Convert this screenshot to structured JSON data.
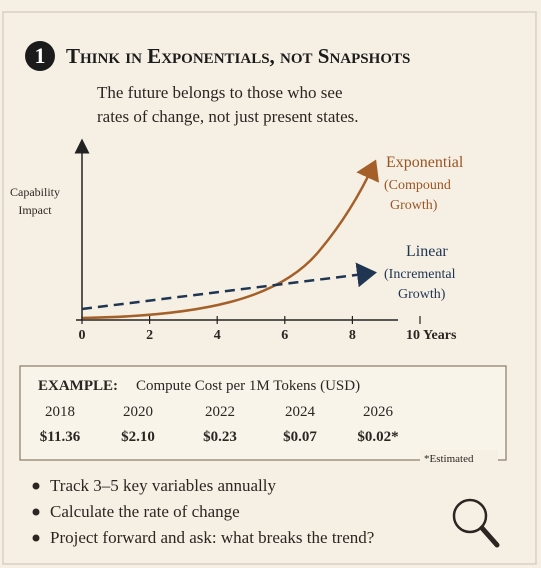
{
  "header": {
    "number": "1",
    "title": "Think in Exponentials, not Snapshots",
    "subtitle_lines": [
      "The future belongs to those who see",
      "rates of change, not just present states."
    ]
  },
  "chart": {
    "y_label_lines": [
      "Capability",
      "Impact"
    ],
    "xlim": [
      0,
      10
    ],
    "xticks": [
      0,
      2,
      4,
      6,
      8,
      {
        "value": 10,
        "label": "10 Years"
      }
    ],
    "exponential": {
      "name": "Exponential",
      "desc_lines": [
        "(Compound",
        "Growth)"
      ]
    },
    "linear": {
      "name": "Linear",
      "desc_lines": [
        "(Incremental",
        "Growth)"
      ]
    }
  },
  "example": {
    "label": "EXAMPLE:",
    "title": "Compute Cost per 1M Tokens (USD)",
    "years": [
      "2018",
      "2020",
      "2022",
      "2024",
      "2026"
    ],
    "costs": [
      "$11.36",
      "$2.10",
      "$0.23",
      "$0.07",
      "$0.02*"
    ],
    "note": "*Estimated"
  },
  "bullets": [
    "Track 3–5 key variables annually",
    "Calculate the rate of change",
    "Project forward and ask: what breaks the trend?"
  ]
}
